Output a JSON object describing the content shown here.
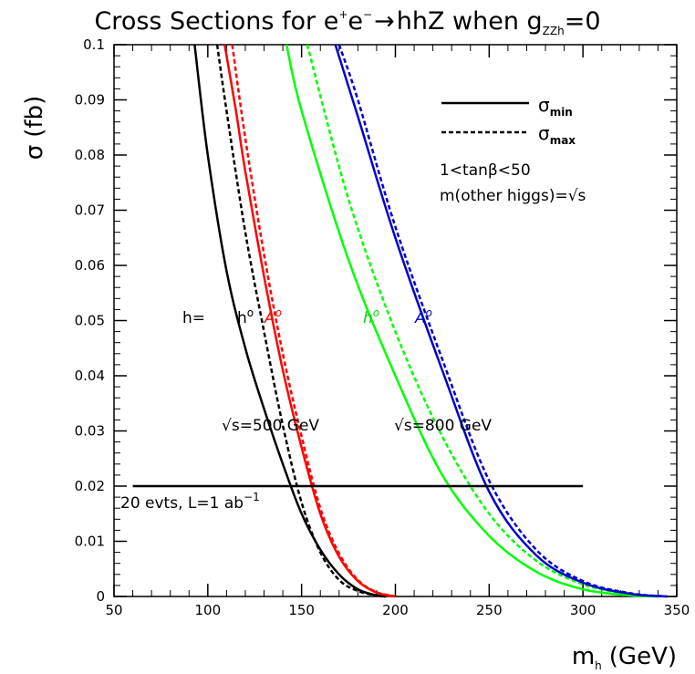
{
  "chart_data": {
    "type": "line",
    "title": {
      "main": "Cross Sections for e",
      "sup1": "+",
      "mid": "e",
      "sup2": "−",
      "arrow": "→",
      "process": "hhZ when g",
      "subscript": "ZZh",
      "tail": "=0"
    },
    "xlabel": {
      "main": "m",
      "sub": "h",
      "unit": "(GeV)"
    },
    "ylabel": {
      "main": "σ",
      "unit": "(fb)"
    },
    "xlim": [
      50,
      350
    ],
    "ylim": [
      0,
      0.1
    ],
    "xticks": [
      "50",
      "100",
      "150",
      "200",
      "250",
      "300",
      "350"
    ],
    "yticks": [
      "0",
      "0.01",
      "0.02",
      "0.03",
      "0.04",
      "0.05",
      "0.06",
      "0.07",
      "0.08",
      "0.09",
      "0.1"
    ],
    "xtick_values": [
      50,
      100,
      150,
      200,
      250,
      300,
      350
    ],
    "ytick_values": [
      0,
      0.01,
      0.02,
      0.03,
      0.04,
      0.05,
      0.06,
      0.07,
      0.08,
      0.09,
      0.1
    ],
    "legend": {
      "min": {
        "label": "σ",
        "sub": "min",
        "style": "solid"
      },
      "max": {
        "label": "σ",
        "sub": "max",
        "style": "dashed"
      },
      "note1": "1<tanβ<50",
      "note2": "m(other higgs)=√s"
    },
    "series": [
      {
        "sqrt_s": 500,
        "particle": "h0",
        "bound": "min",
        "style": "solid",
        "color": "#000000",
        "points": [
          [
            93,
            0.1
          ],
          [
            100,
            0.08
          ],
          [
            110,
            0.059
          ],
          [
            120,
            0.045
          ],
          [
            130,
            0.034
          ],
          [
            140,
            0.024
          ],
          [
            150,
            0.015
          ],
          [
            160,
            0.0085
          ],
          [
            170,
            0.004
          ],
          [
            180,
            0.0013
          ],
          [
            190,
            0.0002
          ],
          [
            195,
            0
          ]
        ]
      },
      {
        "sqrt_s": 500,
        "particle": "h0",
        "bound": "max",
        "style": "dashed",
        "color": "#000000",
        "points": [
          [
            105,
            0.1
          ],
          [
            110,
            0.088
          ],
          [
            120,
            0.066
          ],
          [
            130,
            0.048
          ],
          [
            140,
            0.031
          ],
          [
            150,
            0.017
          ],
          [
            160,
            0.008
          ],
          [
            170,
            0.003
          ],
          [
            180,
            0.001
          ],
          [
            190,
            0.0002
          ],
          [
            195,
            0
          ]
        ]
      },
      {
        "sqrt_s": 500,
        "particle": "A0",
        "bound": "min",
        "style": "solid",
        "color": "#ff0000",
        "points": [
          [
            109,
            0.1
          ],
          [
            115,
            0.088
          ],
          [
            120,
            0.077
          ],
          [
            130,
            0.058
          ],
          [
            140,
            0.041
          ],
          [
            150,
            0.027
          ],
          [
            160,
            0.015
          ],
          [
            170,
            0.0072
          ],
          [
            180,
            0.0028
          ],
          [
            190,
            0.0007
          ],
          [
            200,
            0
          ]
        ]
      },
      {
        "sqrt_s": 500,
        "particle": "A0",
        "bound": "max",
        "style": "dashed",
        "color": "#ff0000",
        "points": [
          [
            113,
            0.1
          ],
          [
            120,
            0.083
          ],
          [
            130,
            0.062
          ],
          [
            140,
            0.044
          ],
          [
            150,
            0.029
          ],
          [
            160,
            0.016
          ],
          [
            170,
            0.0078
          ],
          [
            180,
            0.003
          ],
          [
            190,
            0.0008
          ],
          [
            200,
            0
          ]
        ]
      },
      {
        "sqrt_s": 800,
        "particle": "h0",
        "bound": "min",
        "style": "solid",
        "color": "#00ff00",
        "points": [
          [
            142,
            0.1
          ],
          [
            150,
            0.088
          ],
          [
            175,
            0.061
          ],
          [
            200,
            0.04
          ],
          [
            225,
            0.022
          ],
          [
            250,
            0.011
          ],
          [
            275,
            0.0045
          ],
          [
            300,
            0.0013
          ],
          [
            325,
            0.0002
          ],
          [
            340,
            0
          ]
        ]
      },
      {
        "sqrt_s": 800,
        "particle": "h0",
        "bound": "max",
        "style": "dashed",
        "color": "#00ff00",
        "points": [
          [
            153,
            0.1
          ],
          [
            175,
            0.072
          ],
          [
            200,
            0.048
          ],
          [
            225,
            0.029
          ],
          [
            250,
            0.015
          ],
          [
            275,
            0.0065
          ],
          [
            300,
            0.0022
          ],
          [
            325,
            0.0004
          ],
          [
            340,
            0
          ]
        ]
      },
      {
        "sqrt_s": 800,
        "particle": "A0",
        "bound": "min",
        "style": "solid",
        "color": "#0000cc",
        "points": [
          [
            168,
            0.1
          ],
          [
            180,
            0.087
          ],
          [
            200,
            0.065
          ],
          [
            225,
            0.041
          ],
          [
            250,
            0.019
          ],
          [
            275,
            0.0075
          ],
          [
            300,
            0.0025
          ],
          [
            325,
            0.0005
          ],
          [
            345,
            0
          ]
        ]
      },
      {
        "sqrt_s": 800,
        "particle": "A0",
        "bound": "max",
        "style": "dashed",
        "color": "#0000cc",
        "points": [
          [
            170,
            0.1
          ],
          [
            180,
            0.09
          ],
          [
            200,
            0.067
          ],
          [
            225,
            0.043
          ],
          [
            250,
            0.021
          ],
          [
            275,
            0.0085
          ],
          [
            300,
            0.0028
          ],
          [
            325,
            0.0006
          ],
          [
            345,
            0
          ]
        ]
      }
    ],
    "reference_line": {
      "y": 0.02,
      "x_range": [
        60,
        300
      ],
      "label": "20 evts, L=1 ab",
      "sup": "−1"
    },
    "annotations": {
      "h_equals": "h=",
      "h0_black": "h",
      "h0_black_sup": "o",
      "A0_red": "A",
      "A0_red_sup": "o",
      "h0_green": "h",
      "h0_green_sup": "o",
      "A0_blue": "A",
      "A0_blue_sup": "o",
      "s500": "√s=500 GeV",
      "s800": "√s=800 GeV"
    },
    "colors": {
      "black": "#000000",
      "red": "#ff0000",
      "green": "#00ff00",
      "blue": "#0000cc"
    },
    "grid": false
  }
}
